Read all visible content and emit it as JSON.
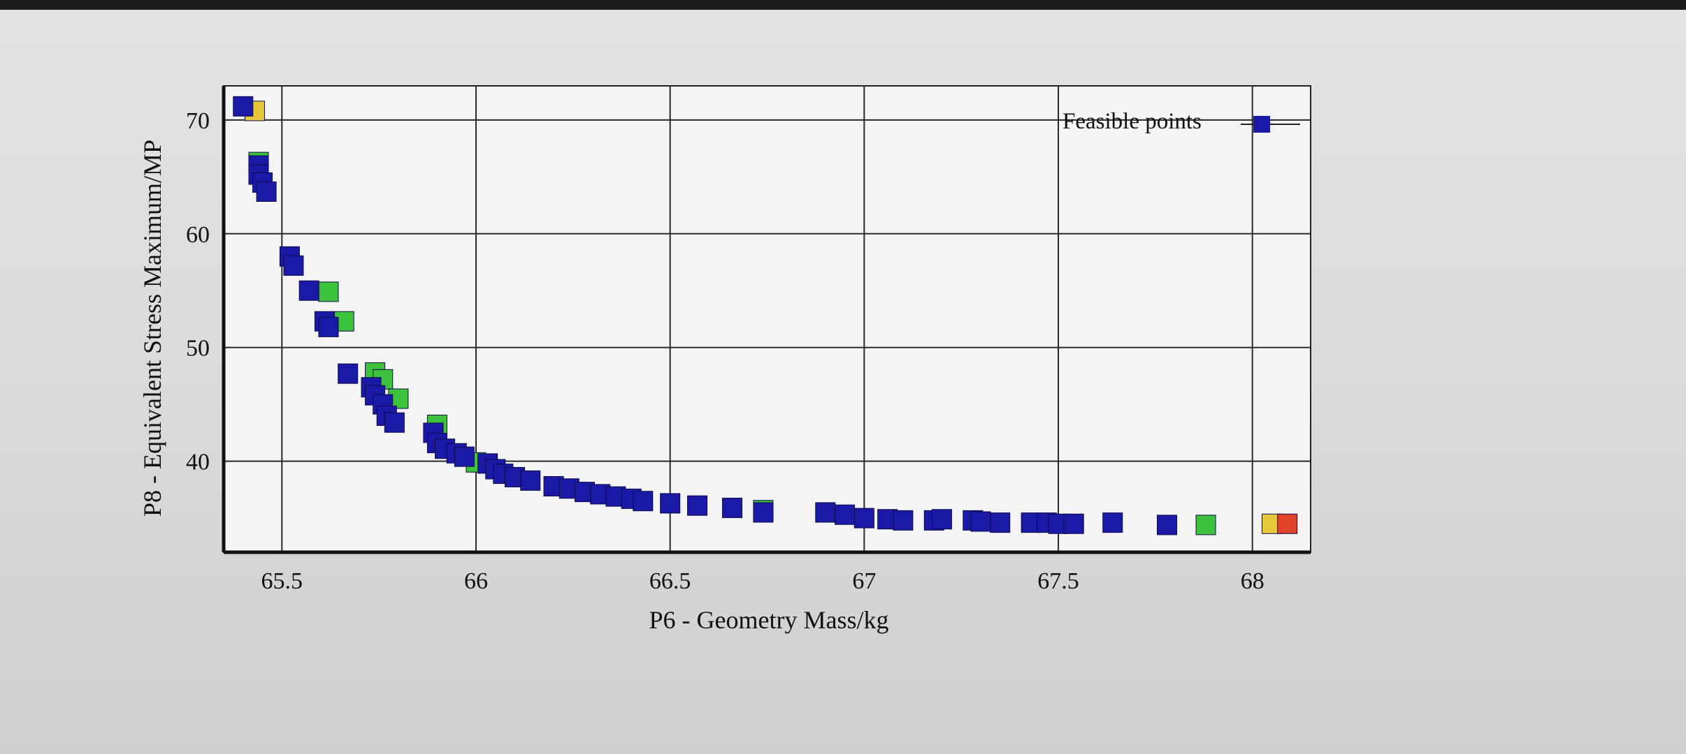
{
  "chart_data": {
    "type": "scatter",
    "title": "",
    "xlabel": "P6 - Geometry Mass/kg",
    "ylabel": "P8 - Equivalent Stress Maximum/MP",
    "xlim": [
      65.35,
      68.15
    ],
    "ylim": [
      32.0,
      73.0
    ],
    "x_ticks": [
      65.5,
      66.0,
      66.5,
      67.0,
      67.5,
      68.0
    ],
    "x_tick_labels": [
      "65.5",
      "66",
      "66.5",
      "67",
      "67.5",
      "68"
    ],
    "y_ticks": [
      40,
      50,
      60,
      70
    ],
    "y_tick_labels": [
      "40",
      "50",
      "60",
      "70"
    ],
    "grid": true,
    "legend": {
      "position": "top-right",
      "entries": [
        "Feasible points"
      ]
    },
    "colors": {
      "feasible": "#1a1aa6",
      "green": "#3cc23c",
      "yellow": "#e6c83a",
      "red": "#e0442a"
    },
    "series": [
      {
        "name": "Feasible points",
        "color": "#1a1aa6",
        "points": [
          [
            65.4,
            71.2
          ],
          [
            65.44,
            66.0
          ],
          [
            65.44,
            65.2
          ],
          [
            65.45,
            64.5
          ],
          [
            65.46,
            63.7
          ],
          [
            65.52,
            58.0
          ],
          [
            65.53,
            57.2
          ],
          [
            65.57,
            55.0
          ],
          [
            65.61,
            52.3
          ],
          [
            65.62,
            51.8
          ],
          [
            65.67,
            47.7
          ],
          [
            65.73,
            46.5
          ],
          [
            65.74,
            45.8
          ],
          [
            65.76,
            45.0
          ],
          [
            65.77,
            44.0
          ],
          [
            65.79,
            43.4
          ],
          [
            65.89,
            42.5
          ],
          [
            65.9,
            41.6
          ],
          [
            65.92,
            41.1
          ],
          [
            65.95,
            40.7
          ],
          [
            65.97,
            40.4
          ],
          [
            66.03,
            39.8
          ],
          [
            66.05,
            39.3
          ],
          [
            66.07,
            38.9
          ],
          [
            66.1,
            38.6
          ],
          [
            66.14,
            38.3
          ],
          [
            66.2,
            37.8
          ],
          [
            66.24,
            37.6
          ],
          [
            66.28,
            37.3
          ],
          [
            66.32,
            37.1
          ],
          [
            66.36,
            36.9
          ],
          [
            66.4,
            36.7
          ],
          [
            66.43,
            36.5
          ],
          [
            66.5,
            36.3
          ],
          [
            66.57,
            36.1
          ],
          [
            66.66,
            35.9
          ],
          [
            66.74,
            35.5
          ],
          [
            66.9,
            35.5
          ],
          [
            66.95,
            35.3
          ],
          [
            67.0,
            35.0
          ],
          [
            67.06,
            34.9
          ],
          [
            67.1,
            34.8
          ],
          [
            67.18,
            34.8
          ],
          [
            67.2,
            34.9
          ],
          [
            67.28,
            34.8
          ],
          [
            67.3,
            34.7
          ],
          [
            67.35,
            34.6
          ],
          [
            67.43,
            34.6
          ],
          [
            67.47,
            34.6
          ],
          [
            67.5,
            34.5
          ],
          [
            67.54,
            34.5
          ],
          [
            67.64,
            34.6
          ],
          [
            67.78,
            34.4
          ]
        ]
      },
      {
        "name": "",
        "color": "#3cc23c",
        "points": [
          [
            65.44,
            66.3
          ],
          [
            65.62,
            54.9
          ],
          [
            65.66,
            52.3
          ],
          [
            65.74,
            47.8
          ],
          [
            65.76,
            47.2
          ],
          [
            65.8,
            45.5
          ],
          [
            65.9,
            43.2
          ],
          [
            66.0,
            39.9
          ],
          [
            66.74,
            35.7
          ],
          [
            67.88,
            34.4
          ]
        ]
      },
      {
        "name": "",
        "color": "#e6c83a",
        "points": [
          [
            65.43,
            70.8
          ],
          [
            68.05,
            34.5
          ]
        ]
      },
      {
        "name": "",
        "color": "#e0442a",
        "points": [
          [
            68.09,
            34.5
          ]
        ]
      }
    ]
  }
}
